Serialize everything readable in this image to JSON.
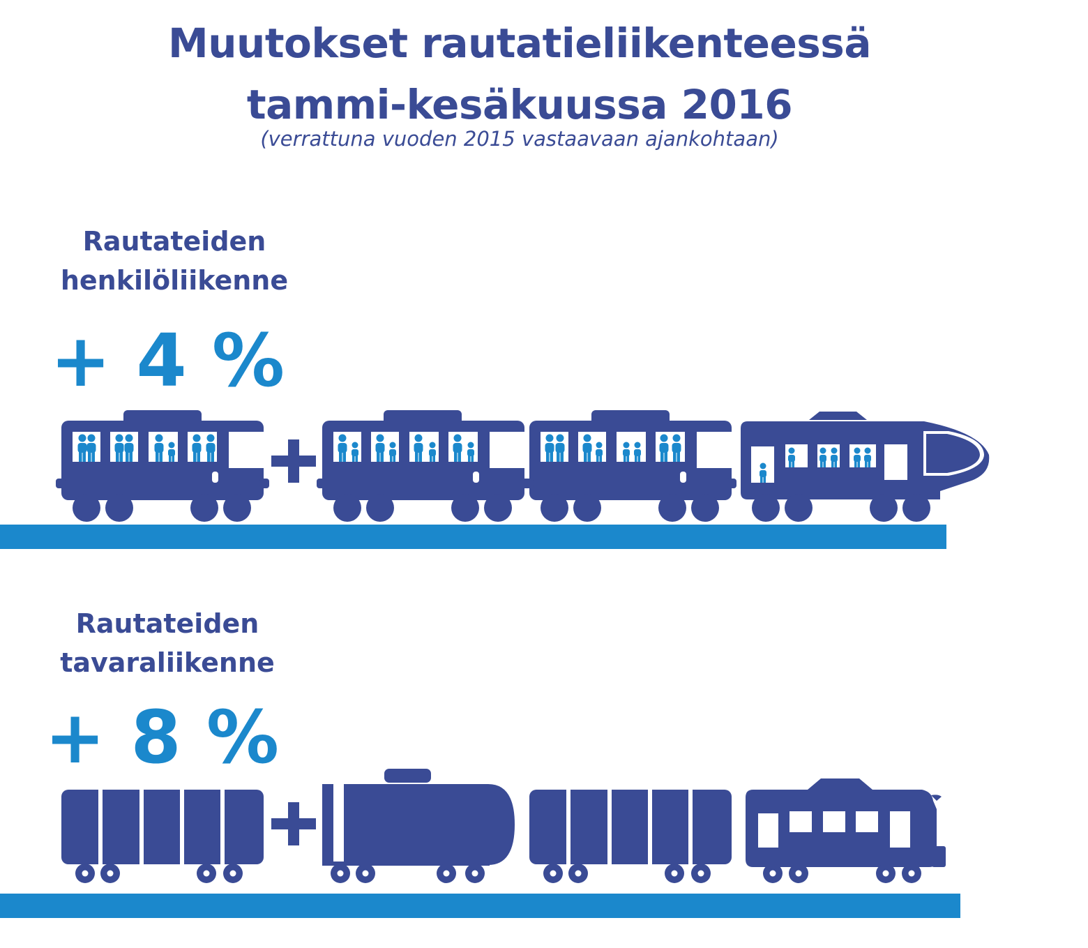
{
  "header": {
    "title_line1": "Muutokset rautatieliikenteessä",
    "title_line2": "tammi-kesäkuussa 2016",
    "subtitle": "(verrattuna vuoden 2015 vastaavaan ajankohtaan)"
  },
  "passenger": {
    "label_line1": "Rautateiden",
    "label_line2": "henkilöliikenne",
    "change": "+ 4 %"
  },
  "freight": {
    "label_line1": "Rautateiden",
    "label_line2": "tavaraliikenne",
    "change": "+ 8 %"
  },
  "colors": {
    "dark_blue": "#3a4b95",
    "light_blue": "#1b88cc",
    "rail_blue": "#1b88cc"
  }
}
